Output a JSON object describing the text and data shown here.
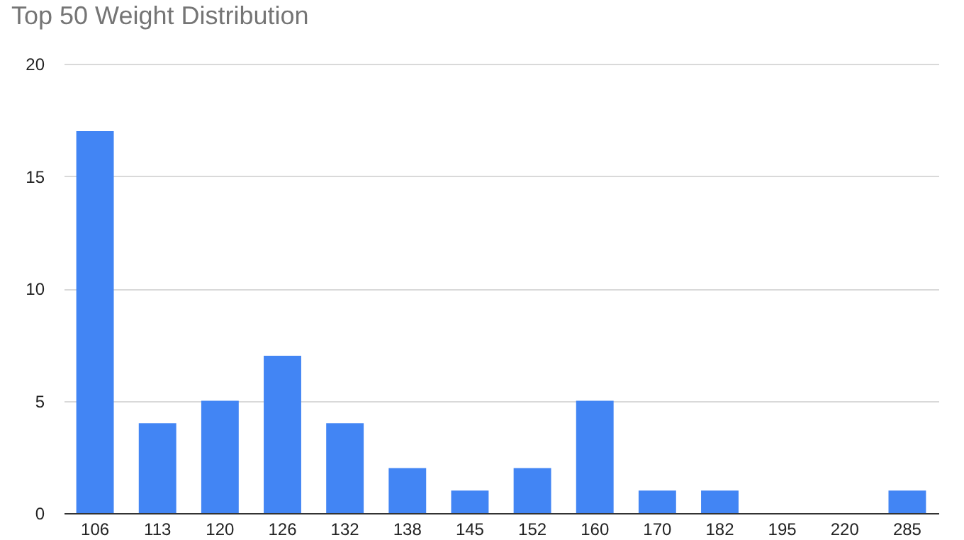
{
  "chart_data": {
    "type": "bar",
    "title": "Top 50 Weight Distribution",
    "categories": [
      "106",
      "113",
      "120",
      "126",
      "132",
      "138",
      "145",
      "152",
      "160",
      "170",
      "182",
      "195",
      "220",
      "285"
    ],
    "values": [
      17,
      4,
      5,
      7,
      4,
      2,
      1,
      2,
      5,
      1,
      1,
      0,
      0,
      1
    ],
    "color": "#4285f4",
    "ylim": [
      0,
      20
    ],
    "yticks": [
      0,
      5,
      10,
      15,
      20
    ],
    "grid": "y"
  }
}
